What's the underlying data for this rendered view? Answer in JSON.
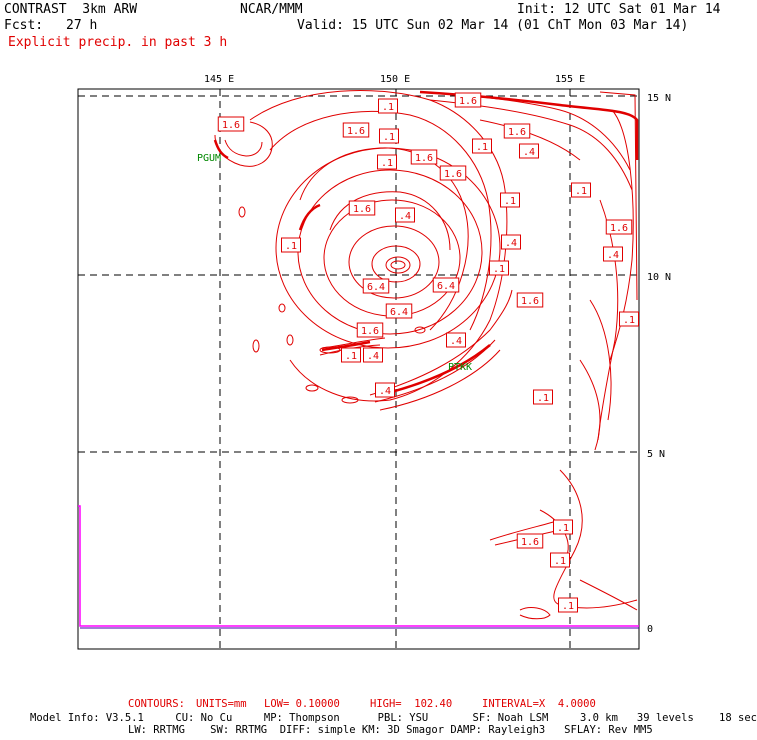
{
  "header": {
    "product": "CONTRAST  3km ARW",
    "center": "NCAR/MMM",
    "init": "Init: 12 UTC Sat 01 Mar 14",
    "fcst_label": "Fcst:",
    "fcst_value": "27 h",
    "valid": "Valid: 15 UTC Sun 02 Mar 14 (01 ChT Mon 03 Mar 14)",
    "field": "Explicit precip. in past 3 h"
  },
  "map": {
    "lon_labels": [
      "145 E",
      "150 E",
      "155 E"
    ],
    "lat_labels": [
      "15 N",
      "10 N",
      "5 N",
      "0"
    ],
    "stations": [
      "PGUM",
      "PTKK"
    ],
    "contour_labels": [
      ".1",
      "1.6",
      "1.6",
      ".1",
      "1.6",
      ".1",
      "1.6",
      ".4",
      "1.6",
      ".1",
      "1.6",
      ".1",
      ".1",
      ".1",
      ".4",
      "1.6",
      "1.6",
      ".4",
      "6.4",
      "6.4",
      "6.4",
      ".1",
      "1.6",
      ".4",
      ".4",
      ".1",
      ".4",
      ".1",
      ".1",
      ".1",
      "1.6",
      ".1",
      ".4",
      "1.6",
      ".1"
    ],
    "colors": {
      "contour": "#e00000",
      "grid": "#000000",
      "station": "#008800",
      "inset_line": "#ff00ff",
      "inset_axis": "#4400aa"
    }
  },
  "footer": {
    "contours_label": "CONTOURS:",
    "units": "UNITS=mm",
    "low": "LOW= 0.10000",
    "high": "HIGH=  102.40",
    "interval": "INTERVAL=X  4.0000",
    "model_line1": "Model Info: V3.5.1     CU: No Cu     MP: Thompson      PBL: YSU       SF: Noah LSM     3.0 km   39 levels    18 sec",
    "model_line2": "LW: RRTMG    SW: RRTMG  DIFF: simple KM: 3D Smagor DAMP: Rayleigh3   SFLAY: Rev MM5"
  }
}
